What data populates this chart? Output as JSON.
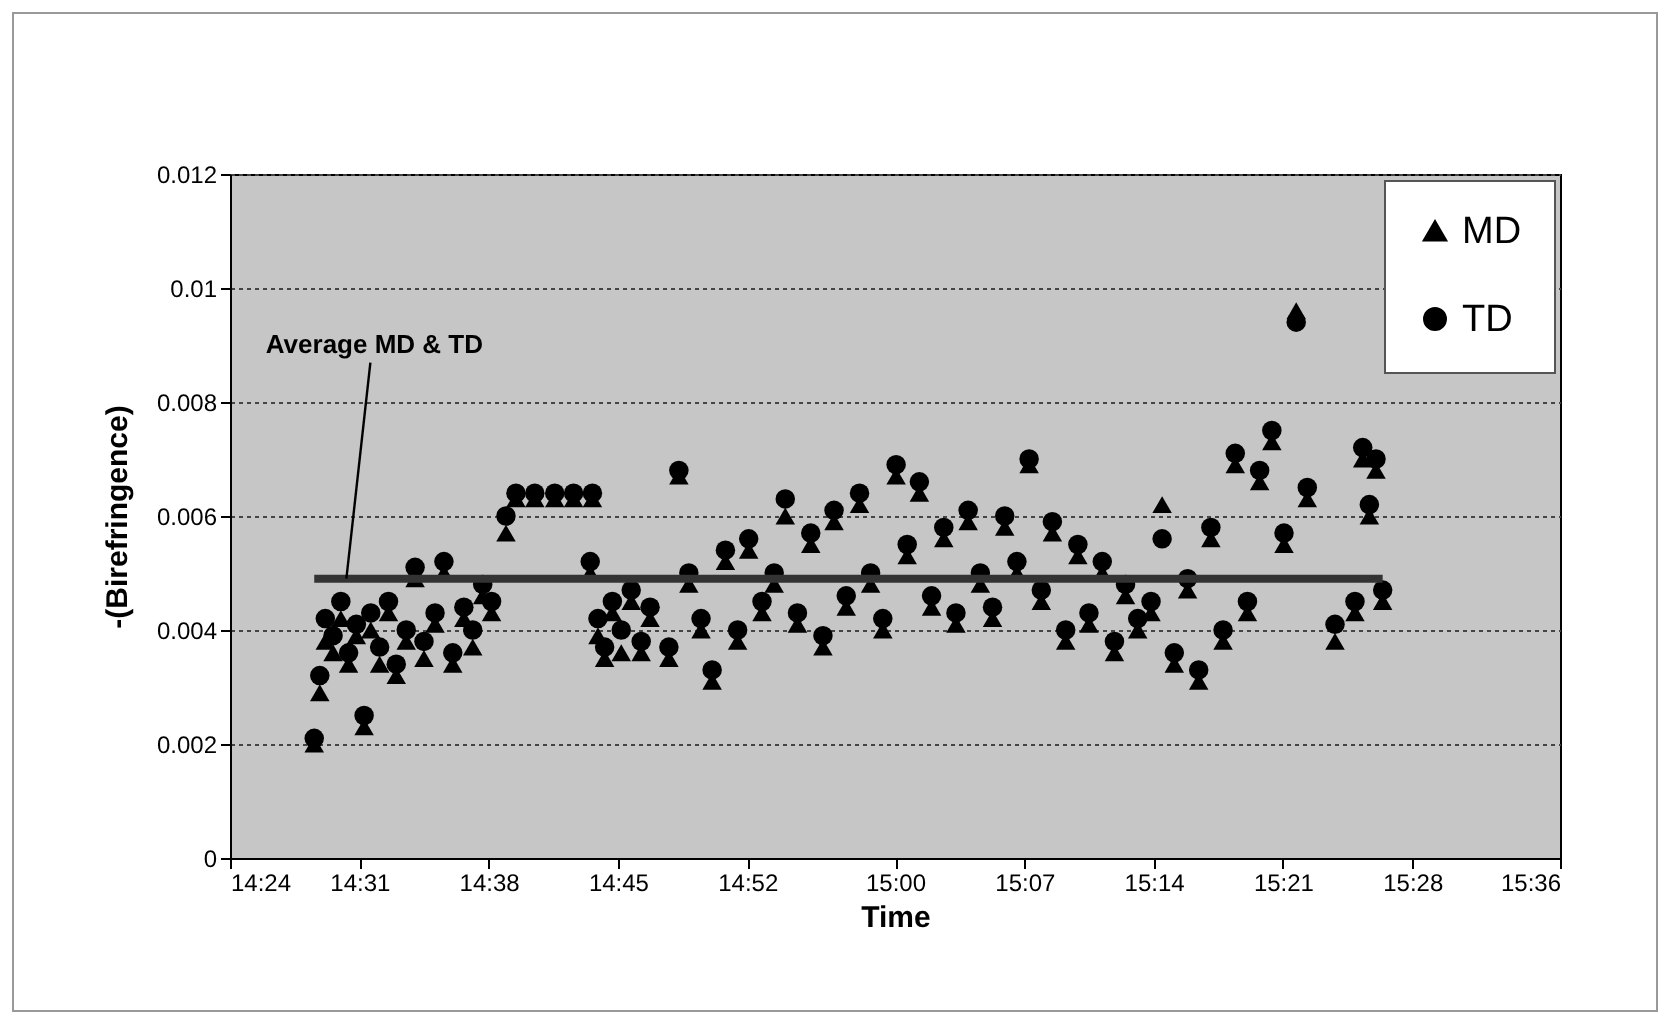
{
  "chart_data": {
    "type": "scatter",
    "xlabel": "Time",
    "ylabel": "-(Birefringence)",
    "xlim": [
      14.4,
      15.6
    ],
    "xticks": [
      {
        "value": 14.4,
        "label": "14:24"
      },
      {
        "value": 14.5167,
        "label": "14:31"
      },
      {
        "value": 14.6333,
        "label": "14:38"
      },
      {
        "value": 14.75,
        "label": "14:45"
      },
      {
        "value": 14.8667,
        "label": "14:52"
      },
      {
        "value": 15.0,
        "label": "15:00"
      },
      {
        "value": 15.1167,
        "label": "15:07"
      },
      {
        "value": 15.2333,
        "label": "15:14"
      },
      {
        "value": 15.35,
        "label": "15:21"
      },
      {
        "value": 15.4667,
        "label": "15:28"
      },
      {
        "value": 15.6,
        "label": "15:36"
      }
    ],
    "ylim": [
      0,
      0.012
    ],
    "yticks": [
      0,
      0.002,
      0.004,
      0.006,
      0.008,
      0.01,
      0.012
    ],
    "grid": "y",
    "legend": "top right",
    "x": [
      14.476,
      14.481,
      14.486,
      14.493,
      14.5,
      14.507,
      14.514,
      14.521,
      14.527,
      14.535,
      14.543,
      14.55,
      14.559,
      14.567,
      14.575,
      14.585,
      14.593,
      14.601,
      14.611,
      14.619,
      14.628,
      14.636,
      14.649,
      14.658,
      14.675,
      14.693,
      14.71,
      14.727,
      14.725,
      14.732,
      14.738,
      14.745,
      14.753,
      14.762,
      14.771,
      14.779,
      14.805,
      14.796,
      14.814,
      14.825,
      14.835,
      14.847,
      14.858,
      14.868,
      14.88,
      14.891,
      14.901,
      14.912,
      14.924,
      14.935,
      14.945,
      14.956,
      14.968,
      14.978,
      14.989,
      15.001,
      15.011,
      15.022,
      15.033,
      15.044,
      15.055,
      15.066,
      15.077,
      15.088,
      15.099,
      15.11,
      15.121,
      15.132,
      15.142,
      15.154,
      15.165,
      15.175,
      15.187,
      15.198,
      15.208,
      15.219,
      15.231,
      15.241,
      15.252,
      15.264,
      15.274,
      15.285,
      15.296,
      15.307,
      15.318,
      15.329,
      15.34,
      15.351,
      15.362,
      15.372,
      15.397,
      15.415,
      15.422,
      15.428,
      15.434,
      15.44
    ],
    "series": [
      {
        "name": "MD",
        "color": "#000000",
        "marker": "triangle",
        "values": [
          0.002,
          0.0029,
          0.0038,
          0.0036,
          0.0042,
          0.0034,
          0.0039,
          0.0023,
          0.004,
          0.0034,
          0.0043,
          0.0032,
          0.0038,
          0.0049,
          0.0035,
          0.0041,
          0.005,
          0.0034,
          0.0042,
          0.0037,
          0.0046,
          0.0043,
          0.0057,
          0.0063,
          0.0063,
          0.0063,
          0.0063,
          0.0063,
          0.005,
          0.0039,
          0.0035,
          0.0043,
          0.0036,
          0.0045,
          0.0036,
          0.0042,
          0.0067,
          0.0035,
          0.0048,
          0.004,
          0.0031,
          0.0052,
          0.0038,
          0.0054,
          0.0043,
          0.0048,
          0.006,
          0.0041,
          0.0055,
          0.0037,
          0.0059,
          0.0044,
          0.0062,
          0.0048,
          0.004,
          0.0067,
          0.0053,
          0.0064,
          0.0044,
          0.0056,
          0.0041,
          0.0059,
          0.0048,
          0.0042,
          0.0058,
          0.005,
          0.0069,
          0.0045,
          0.0057,
          0.0038,
          0.0053,
          0.0041,
          0.005,
          0.0036,
          0.0046,
          0.004,
          0.0043,
          0.0062,
          0.0034,
          0.0047,
          0.0031,
          0.0056,
          0.0038,
          0.0069,
          0.0043,
          0.0066,
          0.0073,
          0.0055,
          0.0096,
          0.0063,
          0.0038,
          0.0043,
          0.007,
          0.006,
          0.0068,
          0.0045
        ]
      },
      {
        "name": "TD",
        "color": "#000000",
        "marker": "circle",
        "values": [
          0.0021,
          0.0032,
          0.0042,
          0.0039,
          0.0045,
          0.0036,
          0.0041,
          0.0025,
          0.0043,
          0.0037,
          0.0045,
          0.0034,
          0.004,
          0.0051,
          0.0038,
          0.0043,
          0.0052,
          0.0036,
          0.0044,
          0.004,
          0.0048,
          0.0045,
          0.006,
          0.0064,
          0.0064,
          0.0064,
          0.0064,
          0.0064,
          0.0052,
          0.0042,
          0.0037,
          0.0045,
          0.004,
          0.0047,
          0.0038,
          0.0044,
          0.0068,
          0.0037,
          0.005,
          0.0042,
          0.0033,
          0.0054,
          0.004,
          0.0056,
          0.0045,
          0.005,
          0.0063,
          0.0043,
          0.0057,
          0.0039,
          0.0061,
          0.0046,
          0.0064,
          0.005,
          0.0042,
          0.0069,
          0.0055,
          0.0066,
          0.0046,
          0.0058,
          0.0043,
          0.0061,
          0.005,
          0.0044,
          0.006,
          0.0052,
          0.007,
          0.0047,
          0.0059,
          0.004,
          0.0055,
          0.0043,
          0.0052,
          0.0038,
          0.0048,
          0.0042,
          0.0045,
          0.0056,
          0.0036,
          0.0049,
          0.0033,
          0.0058,
          0.004,
          0.0071,
          0.0045,
          0.0068,
          0.0075,
          0.0057,
          0.0094,
          0.0065,
          0.0041,
          0.0045,
          0.0072,
          0.0062,
          0.007,
          0.0047
        ]
      },
      {
        "type": "line",
        "color": "#333333",
        "x": [
          14.476,
          15.44
        ],
        "values": [
          0.0049,
          0.0049
        ]
      }
    ],
    "annotations": [
      {
        "text": "Average MD & TD",
        "x": 14.505,
        "y": 0.0049
      }
    ]
  }
}
